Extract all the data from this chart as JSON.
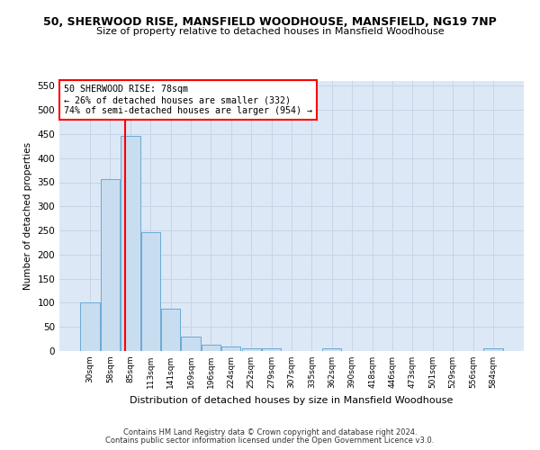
{
  "title": "50, SHERWOOD RISE, MANSFIELD WOODHOUSE, MANSFIELD, NG19 7NP",
  "subtitle": "Size of property relative to detached houses in Mansfield Woodhouse",
  "xlabel": "Distribution of detached houses by size in Mansfield Woodhouse",
  "ylabel": "Number of detached properties",
  "footer_line1": "Contains HM Land Registry data © Crown copyright and database right 2024.",
  "footer_line2": "Contains public sector information licensed under the Open Government Licence v3.0.",
  "categories": [
    "30sqm",
    "58sqm",
    "85sqm",
    "113sqm",
    "141sqm",
    "169sqm",
    "196sqm",
    "224sqm",
    "252sqm",
    "279sqm",
    "307sqm",
    "335sqm",
    "362sqm",
    "390sqm",
    "418sqm",
    "446sqm",
    "473sqm",
    "501sqm",
    "529sqm",
    "556sqm",
    "584sqm"
  ],
  "values": [
    101,
    356,
    447,
    246,
    87,
    30,
    13,
    9,
    5,
    5,
    0,
    0,
    6,
    0,
    0,
    0,
    0,
    0,
    0,
    0,
    5
  ],
  "bar_color": "#c9ddf0",
  "bar_edge_color": "#6aaad4",
  "ylim": [
    0,
    560
  ],
  "yticks": [
    0,
    50,
    100,
    150,
    200,
    250,
    300,
    350,
    400,
    450,
    500,
    550
  ],
  "property_line_label": "50 SHERWOOD RISE: 78sqm",
  "annotation_line1": "← 26% of detached houses are smaller (332)",
  "annotation_line2": "74% of semi-detached houses are larger (954) →",
  "grid_color": "#c8d4e8",
  "background_color": "#dce8f5",
  "fig_background": "#ffffff",
  "bar_width": 0.95,
  "red_line_index": 1.72
}
